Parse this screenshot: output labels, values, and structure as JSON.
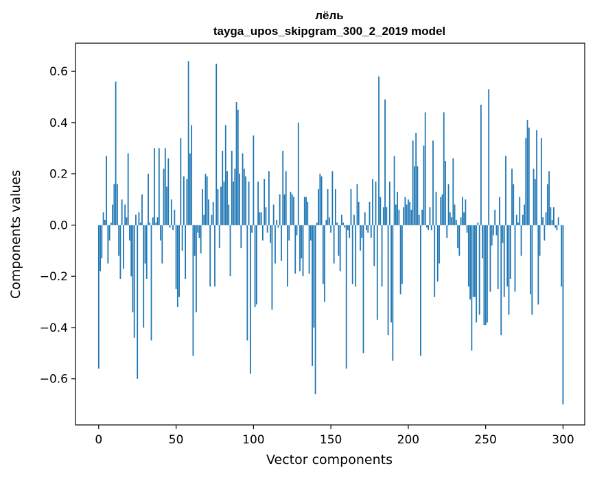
{
  "chart_data": {
    "type": "bar",
    "title": "лёль",
    "subtitle": "tayga_upos_skipgram_300_2_2019 model",
    "xlabel": "Vector components",
    "ylabel": "Components values",
    "xlim": [
      -15,
      314
    ],
    "ylim": [
      -0.78,
      0.71
    ],
    "xticks": [
      0,
      50,
      100,
      150,
      200,
      250,
      300
    ],
    "yticks": [
      -0.6,
      -0.4,
      -0.2,
      0.0,
      0.2,
      0.4,
      0.6
    ],
    "ytick_labels": [
      "−0.6",
      "−0.4",
      "−0.2",
      "0.0",
      "0.2",
      "0.4",
      "0.6"
    ],
    "xtick_labels": [
      "0",
      "50",
      "100",
      "150",
      "200",
      "250",
      "300"
    ],
    "bar_color": "#1f77b4",
    "grid": false,
    "values": [
      -0.56,
      -0.18,
      -0.13,
      0.05,
      0.02,
      0.27,
      -0.15,
      -0.06,
      0.01,
      0.08,
      0.16,
      0.56,
      0.16,
      -0.12,
      -0.21,
      0.1,
      -0.17,
      0.08,
      0.03,
      0.28,
      -0.06,
      -0.2,
      -0.34,
      -0.44,
      0.04,
      -0.6,
      0.05,
      0.01,
      0.12,
      -0.4,
      -0.15,
      -0.21,
      0.2,
      0.01,
      -0.45,
      0.03,
      0.3,
      0.01,
      0.03,
      0.3,
      -0.06,
      -0.15,
      0.22,
      0.3,
      0.15,
      0.26,
      -0.01,
      0.1,
      -0.02,
      0.06,
      -0.25,
      -0.32,
      -0.28,
      0.34,
      -0.1,
      0.19,
      -0.21,
      0.18,
      0.64,
      0.28,
      0.39,
      -0.51,
      -0.12,
      -0.34,
      -0.03,
      -0.05,
      -0.11,
      0.14,
      0.04,
      0.2,
      0.19,
      0.1,
      -0.24,
      0.04,
      0.09,
      -0.24,
      0.63,
      0.14,
      -0.09,
      0.15,
      0.29,
      0.17,
      0.39,
      0.21,
      0.08,
      -0.2,
      0.29,
      0.17,
      0.22,
      0.48,
      0.45,
      0.2,
      -0.09,
      0.28,
      0.22,
      0.19,
      -0.45,
      0.17,
      -0.58,
      -0.03,
      0.35,
      -0.32,
      -0.31,
      0.17,
      0.05,
      0.05,
      -0.06,
      0.18,
      0.07,
      -0.03,
      0.21,
      -0.07,
      -0.33,
      0.08,
      -0.15,
      0.02,
      -0.01,
      0.12,
      -0.14,
      0.29,
      0.12,
      0.21,
      -0.24,
      -0.06,
      0.13,
      0.12,
      0.11,
      -0.19,
      -0.04,
      0.4,
      -0.18,
      -0.13,
      -0.2,
      0.11,
      0.11,
      0.09,
      -0.19,
      -0.06,
      -0.55,
      -0.4,
      -0.66,
      0.01,
      0.14,
      0.2,
      0.19,
      -0.23,
      -0.3,
      0.02,
      0.14,
      0.03,
      -0.03,
      0.21,
      -0.15,
      0.14,
      0.01,
      -0.12,
      -0.18,
      0.04,
      0.01,
      -0.01,
      -0.56,
      -0.02,
      -0.05,
      0.14,
      -0.23,
      0.04,
      -0.24,
      0.16,
      0.09,
      -0.1,
      -0.05,
      -0.5,
      0.05,
      -0.02,
      -0.03,
      0.09,
      -0.05,
      0.18,
      -0.16,
      0.17,
      -0.37,
      0.58,
      0.11,
      -0.24,
      0.07,
      0.49,
      0.07,
      -0.43,
      0.17,
      -0.38,
      -0.53,
      0.27,
      0.08,
      0.13,
      0.06,
      -0.27,
      -0.23,
      0.07,
      0.11,
      0.08,
      0.1,
      0.09,
      0.06,
      0.33,
      0.23,
      0.36,
      0.23,
      0.04,
      -0.51,
      0.06,
      0.31,
      0.44,
      -0.01,
      -0.02,
      0.07,
      -0.02,
      0.33,
      -0.28,
      0.13,
      -0.22,
      -0.15,
      0.11,
      0.12,
      0.44,
      0.25,
      -0.05,
      0.16,
      0.05,
      0.03,
      0.26,
      0.08,
      0.02,
      -0.09,
      -0.12,
      0.03,
      0.11,
      0.05,
      0.1,
      -0.03,
      -0.24,
      -0.29,
      -0.49,
      -0.28,
      -0.28,
      -0.38,
      0.01,
      -0.35,
      0.47,
      -0.13,
      -0.39,
      -0.39,
      -0.38,
      0.53,
      -0.26,
      -0.08,
      -0.04,
      0.06,
      -0.04,
      -0.25,
      0.11,
      -0.43,
      -0.07,
      -0.28,
      0.27,
      -0.24,
      -0.35,
      -0.21,
      0.22,
      0.16,
      -0.26,
      0.04,
      0.01,
      0.11,
      -0.12,
      0.04,
      0.08,
      0.34,
      0.41,
      0.38,
      -0.27,
      -0.35,
      0.22,
      0.18,
      0.37,
      -0.31,
      -0.12,
      0.34,
      0.03,
      -0.06,
      0.05,
      0.16,
      0.21,
      0.07,
      0.02,
      0.07,
      -0.01,
      -0.02,
      0.03,
      0.0,
      -0.24,
      -0.7
    ]
  }
}
